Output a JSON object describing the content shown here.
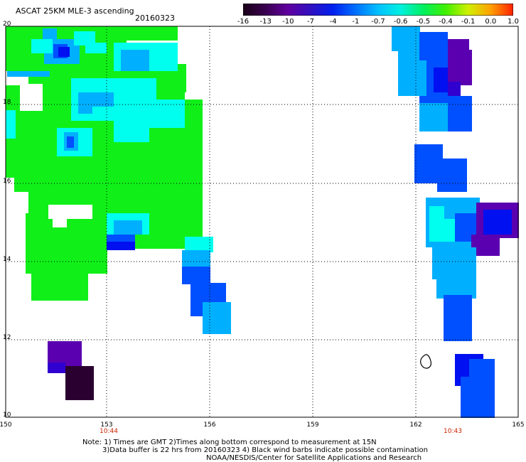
{
  "header": {
    "title": "ASCAT 25KM MLE-3 ascending",
    "date": "20160323"
  },
  "colorbar": {
    "labels": [
      "-16",
      "-13",
      "-10",
      "-7",
      "-4",
      "-1",
      "-0.7",
      "-0.6",
      "-0.5",
      "-0.4",
      "-0.1",
      "0.0",
      "1.0"
    ],
    "colors": [
      "#1a0018",
      "#3a0050",
      "#6000a0",
      "#3010c0",
      "#0020f0",
      "#0070ff",
      "#00c0ff",
      "#00f0e0",
      "#00f060",
      "#40f000",
      "#d0f000",
      "#ffa000",
      "#ff2000"
    ]
  },
  "map": {
    "lat_labels": [
      "20",
      "18",
      "16",
      "14",
      "12",
      "10"
    ],
    "lon_labels": [
      "150",
      "153",
      "156",
      "159",
      "162",
      "165"
    ],
    "time_labels": [
      "10:44",
      "10:43"
    ],
    "time_color": "#cc2200",
    "colors": {
      "green": "#10f018",
      "cyan": "#00ffee",
      "lightblue": "#00b0ff",
      "blue": "#0050ff",
      "darkblue": "#0010f0",
      "indigo": "#3000d0",
      "purple": "#5a00b0",
      "darkpurple": "#2a0030"
    }
  },
  "footer": {
    "line1": "Note: 1) Times are GMT 2)Times along bottom correspond to measurement at 15N",
    "line2": "3)Data buffer is 22 hrs from 20160323 4) Black wind barbs indicate possible contamination",
    "line3": "NOAA/NESDIS/Center for Satellite Applications and Research"
  }
}
